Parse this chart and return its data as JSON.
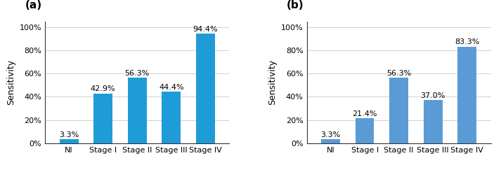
{
  "chart_a": {
    "label": "(a)",
    "categories": [
      "NI",
      "Stage I",
      "Stage II",
      "Stage III",
      "Stage IV"
    ],
    "values": [
      3.3,
      42.9,
      56.3,
      44.4,
      94.4
    ],
    "labels": [
      "3.3%",
      "42.9%",
      "56.3%",
      "44.4%",
      "94.4%"
    ],
    "ylabel": "Sensitivity",
    "ylim": [
      0,
      105
    ],
    "yticks": [
      0,
      20,
      40,
      60,
      80,
      100
    ],
    "yticklabels": [
      "0%",
      "20%",
      "40%",
      "60%",
      "80%",
      "100%"
    ],
    "bar_color": "#1e9cd7"
  },
  "chart_b": {
    "label": "(b)",
    "categories": [
      "NI",
      "Stage I",
      "Stage II",
      "Stage III",
      "Stage IV"
    ],
    "values": [
      3.3,
      21.4,
      56.3,
      37.0,
      83.3
    ],
    "labels": [
      "3.3%",
      "21.4%",
      "56.3%",
      "37.0%",
      "83.3%"
    ],
    "ylabel": "Sensitivity",
    "ylim": [
      0,
      105
    ],
    "yticks": [
      0,
      20,
      40,
      60,
      80,
      100
    ],
    "yticklabels": [
      "0%",
      "20%",
      "40%",
      "60%",
      "80%",
      "100%"
    ],
    "bar_color": "#5b9bd5"
  },
  "background_color": "#ffffff",
  "axis_label_fontsize": 9,
  "tick_fontsize": 8,
  "bar_label_fontsize": 8,
  "panel_label_fontsize": 11
}
